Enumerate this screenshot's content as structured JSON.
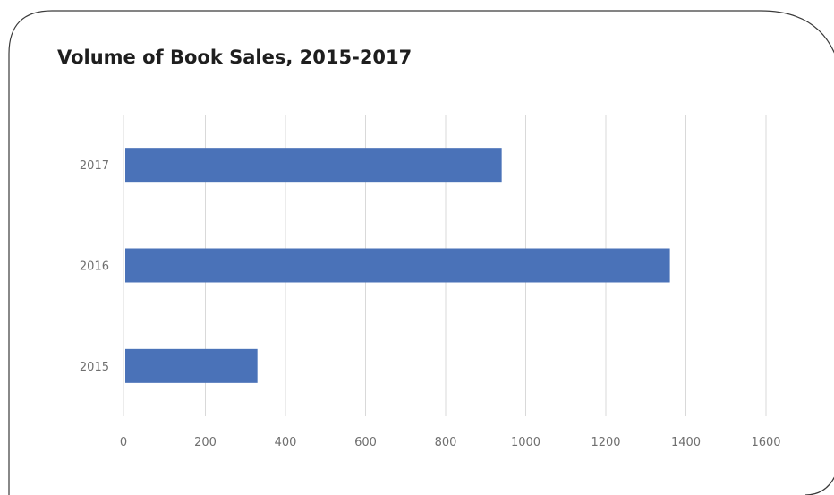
{
  "chart_data": {
    "type": "bar",
    "orientation": "horizontal",
    "title": "Volume of Book Sales, 2015-2017",
    "xlabel": "",
    "ylabel": "",
    "categories": [
      "2015",
      "2016",
      "2017"
    ],
    "values": [
      330,
      1360,
      940
    ],
    "xlim": [
      0,
      1600
    ],
    "x_ticks": [
      0,
      200,
      400,
      600,
      800,
      1000,
      1200,
      1400,
      1600
    ],
    "grid": "vertical",
    "legend": "none",
    "bar_color": "#4a72b8",
    "grid_color": "#d9d9d9"
  }
}
